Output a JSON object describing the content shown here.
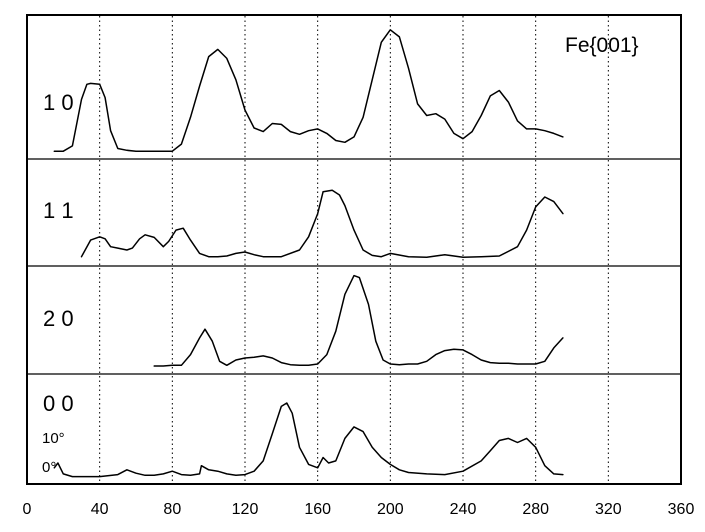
{
  "chart_data": {
    "type": "line",
    "title": "Fe{001}",
    "xlim": [
      0,
      360
    ],
    "x_ticks": [
      "0",
      "40",
      "80",
      "120",
      "160",
      "200",
      "240",
      "280",
      "320",
      "360"
    ],
    "grid": true,
    "panels": [
      {
        "label": "1 0",
        "series": [
          {
            "x": [
              15,
              20,
              25,
              30,
              33,
              35,
              40,
              43,
              46,
              50,
              55,
              60,
              70,
              80,
              85,
              90,
              95,
              100,
              105,
              110,
              115,
              120,
              125,
              130,
              135,
              140,
              145,
              150,
              155,
              160,
              165,
              170,
              175,
              180,
              185,
              190,
              195,
              200,
              205,
              210,
              215,
              220,
              225,
              230,
              235,
              240,
              245,
              250,
              255,
              260,
              265,
              270,
              275,
              280,
              285,
              290,
              295
            ],
            "y": [
              0.02,
              0.02,
              0.08,
              0.6,
              0.77,
              0.78,
              0.77,
              0.62,
              0.25,
              0.05,
              0.03,
              0.02,
              0.02,
              0.02,
              0.1,
              0.4,
              0.75,
              1.08,
              1.16,
              1.06,
              0.82,
              0.48,
              0.28,
              0.24,
              0.33,
              0.32,
              0.24,
              0.21,
              0.25,
              0.27,
              0.22,
              0.14,
              0.12,
              0.18,
              0.4,
              0.82,
              1.24,
              1.38,
              1.3,
              0.95,
              0.55,
              0.42,
              0.44,
              0.38,
              0.22,
              0.16,
              0.24,
              0.42,
              0.64,
              0.7,
              0.57,
              0.36,
              0.27,
              0.27,
              0.25,
              0.22,
              0.18
            ]
          }
        ]
      },
      {
        "label": "1 1",
        "series": [
          {
            "x": [
              30,
              35,
              40,
              43,
              46,
              50,
              55,
              58,
              62,
              65,
              70,
              75,
              78,
              82,
              86,
              90,
              95,
              100,
              105,
              110,
              115,
              120,
              125,
              130,
              140,
              150,
              155,
              160,
              163,
              168,
              172,
              175,
              180,
              185,
              190,
              195,
              200,
              210,
              220,
              230,
              240,
              250,
              260,
              270,
              275,
              280,
              285,
              290,
              295
            ],
            "y": [
              0.05,
              0.3,
              0.35,
              0.32,
              0.2,
              0.18,
              0.15,
              0.18,
              0.32,
              0.38,
              0.34,
              0.2,
              0.28,
              0.45,
              0.48,
              0.3,
              0.1,
              0.05,
              0.05,
              0.06,
              0.1,
              0.12,
              0.08,
              0.05,
              0.05,
              0.15,
              0.35,
              0.7,
              1.03,
              1.05,
              0.98,
              0.82,
              0.45,
              0.15,
              0.07,
              0.05,
              0.1,
              0.05,
              0.04,
              0.08,
              0.04,
              0.05,
              0.06,
              0.2,
              0.45,
              0.8,
              0.95,
              0.88,
              0.7
            ]
          }
        ]
      },
      {
        "label": "2 0",
        "series": [
          {
            "x": [
              70,
              75,
              80,
              85,
              90,
              95,
              98,
              102,
              106,
              110,
              115,
              120,
              125,
              130,
              135,
              140,
              145,
              150,
              155,
              160,
              165,
              170,
              175,
              180,
              183,
              188,
              192,
              196,
              200,
              205,
              210,
              215,
              220,
              225,
              230,
              235,
              240,
              245,
              250,
              255,
              260,
              265,
              270,
              275,
              280,
              285,
              290,
              295
            ],
            "y": [
              0.03,
              0.03,
              0.04,
              0.04,
              0.2,
              0.45,
              0.58,
              0.4,
              0.1,
              0.04,
              0.12,
              0.15,
              0.16,
              0.18,
              0.15,
              0.08,
              0.05,
              0.04,
              0.04,
              0.06,
              0.2,
              0.55,
              1.1,
              1.38,
              1.35,
              0.95,
              0.4,
              0.12,
              0.06,
              0.05,
              0.06,
              0.06,
              0.1,
              0.2,
              0.26,
              0.28,
              0.27,
              0.2,
              0.12,
              0.08,
              0.07,
              0.07,
              0.06,
              0.06,
              0.06,
              0.1,
              0.3,
              0.45
            ]
          }
        ]
      },
      {
        "label": "0 0",
        "series": [
          {
            "x": [
              15,
              17,
              20,
              25,
              30,
              40,
              50,
              55,
              60,
              65,
              70,
              75,
              80,
              85,
              90,
              95,
              96,
              100,
              105,
              110,
              115,
              120,
              125,
              130,
              135,
              140,
              143,
              146,
              150,
              155,
              160,
              163,
              166,
              170,
              175,
              180,
              185,
              190,
              195,
              200,
              205,
              210,
              220,
              230,
              240,
              250,
              255,
              260,
              265,
              270,
              275,
              280,
              285,
              290,
              295
            ],
            "y": [
              0.15,
              0.22,
              0.06,
              0.02,
              0.02,
              0.02,
              0.05,
              0.12,
              0.07,
              0.04,
              0.04,
              0.06,
              0.1,
              0.05,
              0.04,
              0.06,
              0.18,
              0.12,
              0.1,
              0.06,
              0.04,
              0.05,
              0.1,
              0.25,
              0.65,
              1.05,
              1.1,
              0.95,
              0.45,
              0.2,
              0.15,
              0.3,
              0.22,
              0.25,
              0.58,
              0.75,
              0.68,
              0.45,
              0.3,
              0.2,
              0.12,
              0.08,
              0.06,
              0.05,
              0.1,
              0.25,
              0.4,
              0.55,
              0.58,
              0.52,
              0.58,
              0.45,
              0.18,
              0.06,
              0.05
            ]
          }
        ]
      }
    ],
    "annotations": [
      "10°",
      "0°"
    ]
  }
}
